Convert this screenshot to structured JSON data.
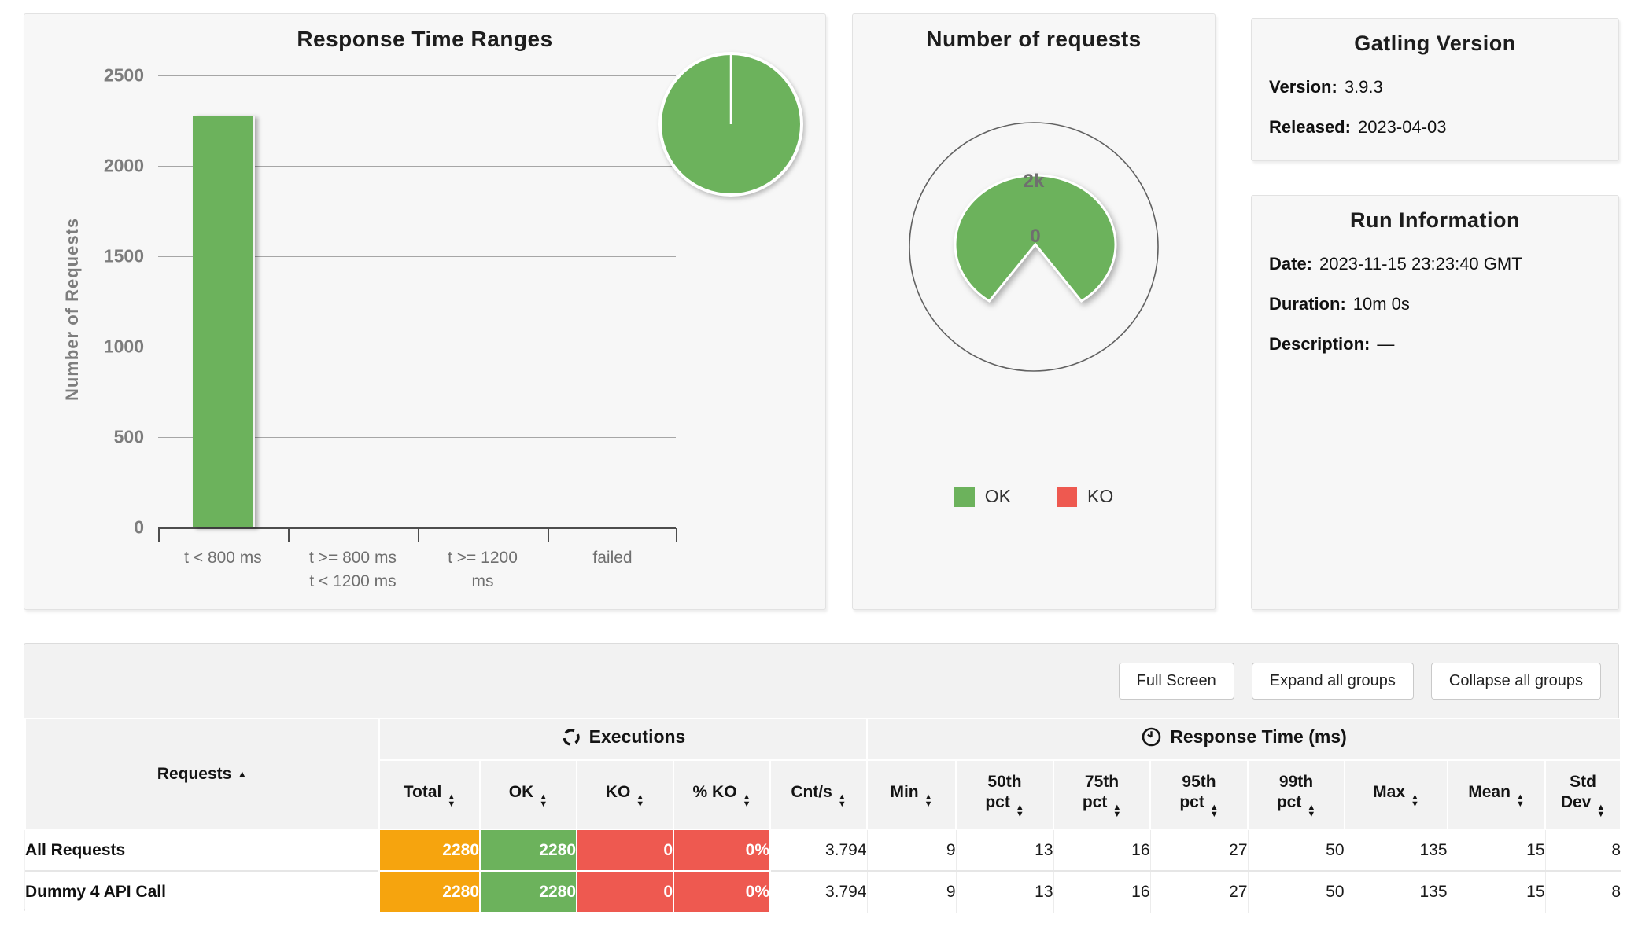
{
  "colors": {
    "green": "#6cb25c",
    "orange": "#f6a40e",
    "red": "#ee5950"
  },
  "icons": {
    "sort_asc": "▲",
    "sort_desc": "▼"
  },
  "panels": {
    "response_time_ranges": {
      "title": "Response Time Ranges",
      "ylabel": "Number of Requests",
      "categories_lines": [
        "t < 800 ms",
        "t >= 800 ms\nt < 1200 ms",
        "t >= 1200\nms",
        "failed"
      ]
    },
    "number_of_requests": {
      "title": "Number of requests",
      "outer_label": "2k",
      "center_label": "0",
      "legend": [
        {
          "label": "OK",
          "color": "#6cb25c"
        },
        {
          "label": "KO",
          "color": "#ee5950"
        }
      ]
    },
    "gatling_version": {
      "title": "Gatling Version",
      "fields": [
        {
          "label": "Version:",
          "value": "3.9.3"
        },
        {
          "label": "Released:",
          "value": "2023-04-03"
        }
      ]
    },
    "run_information": {
      "title": "Run Information",
      "fields": [
        {
          "label": "Date:",
          "value": "2023-11-15 23:23:40 GMT"
        },
        {
          "label": "Duration:",
          "value": "10m 0s"
        },
        {
          "label": "Description:",
          "value": "—"
        }
      ]
    }
  },
  "toolbar": {
    "buttons": [
      "Full Screen",
      "Expand all groups",
      "Collapse all groups"
    ]
  },
  "table": {
    "requests_header": "Requests",
    "groups": [
      {
        "label": "Executions"
      },
      {
        "label": "Response Time (ms)"
      }
    ],
    "columns": [
      {
        "label": "Total"
      },
      {
        "label": "OK"
      },
      {
        "label": "KO"
      },
      {
        "label": "% KO"
      },
      {
        "label": "Cnt/s"
      },
      {
        "label": "Min"
      },
      {
        "label": "50th pct",
        "line1": "50th",
        "line2": "pct"
      },
      {
        "label": "75th pct",
        "line1": "75th",
        "line2": "pct"
      },
      {
        "label": "95th pct",
        "line1": "95th",
        "line2": "pct"
      },
      {
        "label": "99th pct",
        "line1": "99th",
        "line2": "pct"
      },
      {
        "label": "Max"
      },
      {
        "label": "Mean"
      },
      {
        "label": "Std Dev",
        "line1": "Std",
        "line2": "Dev"
      }
    ],
    "rows": [
      {
        "name": "All Requests",
        "cells": [
          "2280",
          "2280",
          "0",
          "0%",
          "3.794",
          "9",
          "13",
          "16",
          "27",
          "50",
          "135",
          "15",
          "8"
        ]
      },
      {
        "name": "Dummy 4 API Call",
        "cells": [
          "2280",
          "2280",
          "0",
          "0%",
          "3.794",
          "9",
          "13",
          "16",
          "27",
          "50",
          "135",
          "15",
          "8"
        ]
      }
    ]
  },
  "chart_data": [
    {
      "type": "bar",
      "title": "Response Time Ranges",
      "xlabel": "",
      "ylabel": "Number of Requests",
      "categories": [
        "t < 800 ms",
        "t >= 800 ms t < 1200 ms",
        "t >= 1200 ms",
        "failed"
      ],
      "values": [
        2280,
        0,
        0,
        0
      ],
      "ylim": [
        0,
        2500
      ],
      "yticks": [
        0,
        500,
        1000,
        1500,
        2000,
        2500
      ],
      "bar_color": "#6cb25c",
      "grid": true,
      "legend_position": "none"
    },
    {
      "type": "pie",
      "note": "small unlabeled pie in Response Time Ranges panel",
      "slices": [
        {
          "label": "t < 800 ms",
          "value": 2280,
          "color": "#6cb25c"
        }
      ]
    },
    {
      "type": "pie",
      "title": "Number of requests",
      "slices": [
        {
          "label": "OK",
          "value": 2280,
          "color": "#6cb25c"
        },
        {
          "label": "KO",
          "value": 0,
          "color": "#ee5950"
        }
      ],
      "radial_axis_labels": [
        "0",
        "2k"
      ],
      "legend_position": "bottom"
    }
  ]
}
